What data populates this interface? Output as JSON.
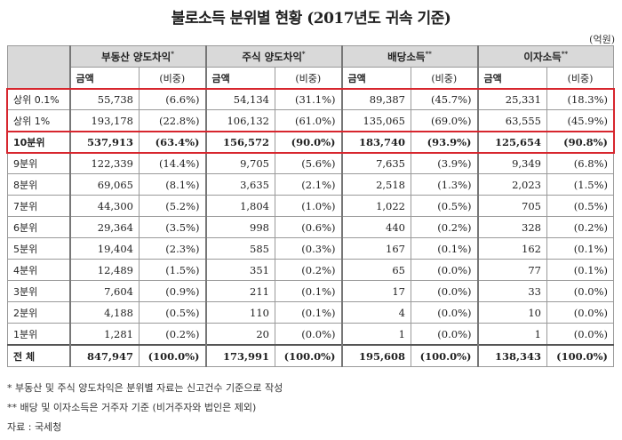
{
  "title": "불로소득 분위별 현황 (2017년도 귀속 기준)",
  "unit": "(억원)",
  "groups": [
    {
      "label": "부동산 양도차익",
      "mark": "*"
    },
    {
      "label": "주식 양도차익",
      "mark": "*"
    },
    {
      "label": "배당소득",
      "mark": "**"
    },
    {
      "label": "이자소득",
      "mark": "**"
    }
  ],
  "sub_headers": {
    "amount": "금액",
    "share": "(비중)"
  },
  "rows": [
    {
      "label": "상위 0.1%",
      "cells": [
        "55,738",
        "(6.6%)",
        "54,134",
        "(31.1%)",
        "89,387",
        "(45.7%)",
        "25,331",
        "(18.3%)"
      ]
    },
    {
      "label": "상위 1%",
      "cells": [
        "193,178",
        "(22.8%)",
        "106,132",
        "(61.0%)",
        "135,065",
        "(69.0%)",
        "63,555",
        "(45.9%)"
      ]
    },
    {
      "label": "10분위",
      "cells": [
        "537,913",
        "(63.4%)",
        "156,572",
        "(90.0%)",
        "183,740",
        "(93.9%)",
        "125,654",
        "(90.8%)"
      ]
    },
    {
      "label": "9분위",
      "cells": [
        "122,339",
        "(14.4%)",
        "9,705",
        "(5.6%)",
        "7,635",
        "(3.9%)",
        "9,349",
        "(6.8%)"
      ]
    },
    {
      "label": "8분위",
      "cells": [
        "69,065",
        "(8.1%)",
        "3,635",
        "(2.1%)",
        "2,518",
        "(1.3%)",
        "2,023",
        "(1.5%)"
      ]
    },
    {
      "label": "7분위",
      "cells": [
        "44,300",
        "(5.2%)",
        "1,804",
        "(1.0%)",
        "1,022",
        "(0.5%)",
        "705",
        "(0.5%)"
      ]
    },
    {
      "label": "6분위",
      "cells": [
        "29,364",
        "(3.5%)",
        "998",
        "(0.6%)",
        "440",
        "(0.2%)",
        "328",
        "(0.2%)"
      ]
    },
    {
      "label": "5분위",
      "cells": [
        "19,404",
        "(2.3%)",
        "585",
        "(0.3%)",
        "167",
        "(0.1%)",
        "162",
        "(0.1%)"
      ]
    },
    {
      "label": "4분위",
      "cells": [
        "12,489",
        "(1.5%)",
        "351",
        "(0.2%)",
        "65",
        "(0.0%)",
        "77",
        "(0.1%)"
      ]
    },
    {
      "label": "3분위",
      "cells": [
        "7,604",
        "(0.9%)",
        "211",
        "(0.1%)",
        "17",
        "(0.0%)",
        "33",
        "(0.0%)"
      ]
    },
    {
      "label": "2분위",
      "cells": [
        "4,188",
        "(0.5%)",
        "110",
        "(0.1%)",
        "4",
        "(0.0%)",
        "10",
        "(0.0%)"
      ]
    },
    {
      "label": "1분위",
      "cells": [
        "1,281",
        "(0.2%)",
        "20",
        "(0.0%)",
        "1",
        "(0.0%)",
        "1",
        "(0.0%)"
      ]
    }
  ],
  "total": {
    "label": "전 체",
    "cells": [
      "847,947",
      "(100.0%)",
      "173,991",
      "(100.0%)",
      "195,608",
      "(100.0%)",
      "138,343",
      "(100.0%)"
    ]
  },
  "notes": [
    "* 부동산 및 주식 양도차익은 분위별 자료는 신고건수 기준으로 작성",
    "** 배당 및 이자소득은 거주자 기준 (비거주자와 법인은 제외)",
    "자료 : 국세청"
  ],
  "colors": {
    "highlight_box": "#d7262e",
    "header_bg": "#d9d9d9"
  }
}
